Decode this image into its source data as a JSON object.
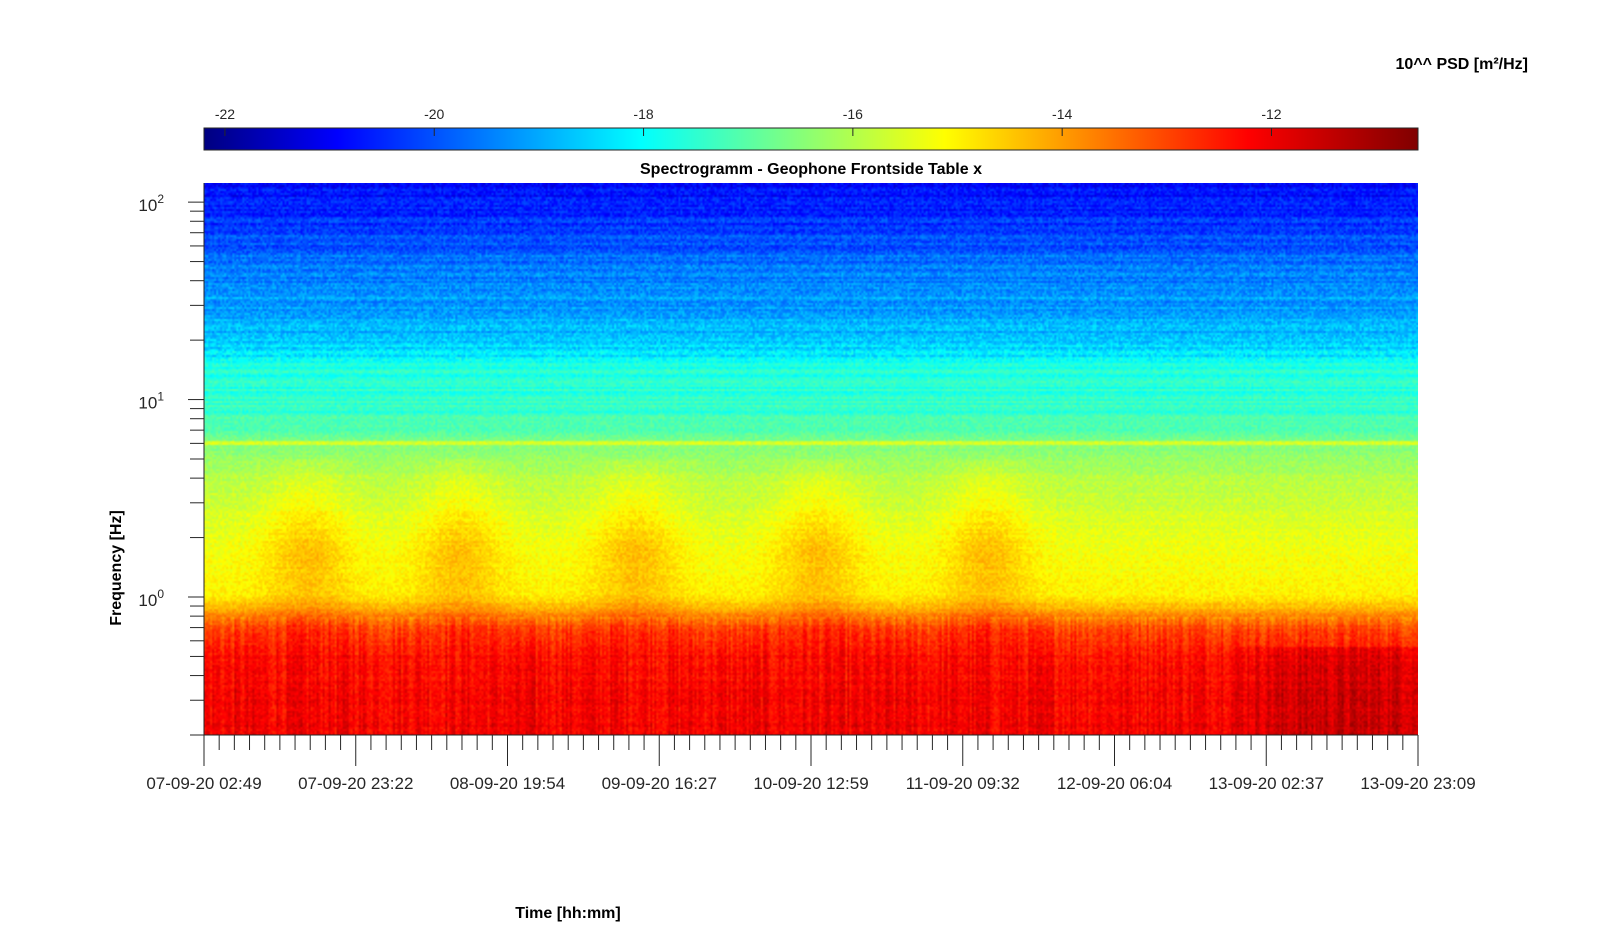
{
  "chart_data": {
    "type": "heatmap",
    "title": "Spectrogramm - Geophone Frontside Table x",
    "xlabel": "Time [hh:mm]",
    "ylabel": "Frequency [Hz]",
    "y_scale": "log",
    "ylim": [
      0.2,
      125
    ],
    "y_ticks": [
      {
        "base": "10",
        "exp": "0",
        "value": 1
      },
      {
        "base": "10",
        "exp": "1",
        "value": 10
      },
      {
        "base": "10",
        "exp": "2",
        "value": 100
      }
    ],
    "x_ticks": [
      "07-09-20 02:49",
      "07-09-20 23:22",
      "08-09-20 19:54",
      "09-09-20 16:27",
      "10-09-20 12:59",
      "11-09-20 09:32",
      "12-09-20 06:04",
      "13-09-20 02:37",
      "13-09-20 23:09"
    ],
    "colorbar": {
      "label": "10^^ PSD [m²/Hz]",
      "range": [
        -22.2,
        -10.6
      ],
      "ticks": [
        "-22",
        "-20",
        "-18",
        "-16",
        "-14",
        "-12"
      ],
      "tick_values": [
        -22,
        -20,
        -18,
        -16,
        -14,
        -12
      ],
      "colormap": "jet"
    },
    "psd_profile": {
      "freq_hz": [
        0.2,
        0.3,
        0.5,
        0.7,
        0.9,
        1.0,
        1.5,
        2,
        3,
        4,
        5,
        6,
        7,
        8,
        10,
        12,
        15,
        18,
        22,
        26,
        30,
        40,
        50,
        60,
        80,
        100,
        125
      ],
      "log_psd": [
        -11.9,
        -12.0,
        -12.2,
        -12.9,
        -14.2,
        -14.8,
        -15.0,
        -15.2,
        -15.5,
        -15.8,
        -16.1,
        -16.4,
        -16.9,
        -17.1,
        -17.3,
        -17.4,
        -17.6,
        -18.3,
        -18.6,
        -18.8,
        -18.9,
        -19.2,
        -19.5,
        -19.8,
        -20.2,
        -20.5,
        -20.8
      ]
    }
  }
}
